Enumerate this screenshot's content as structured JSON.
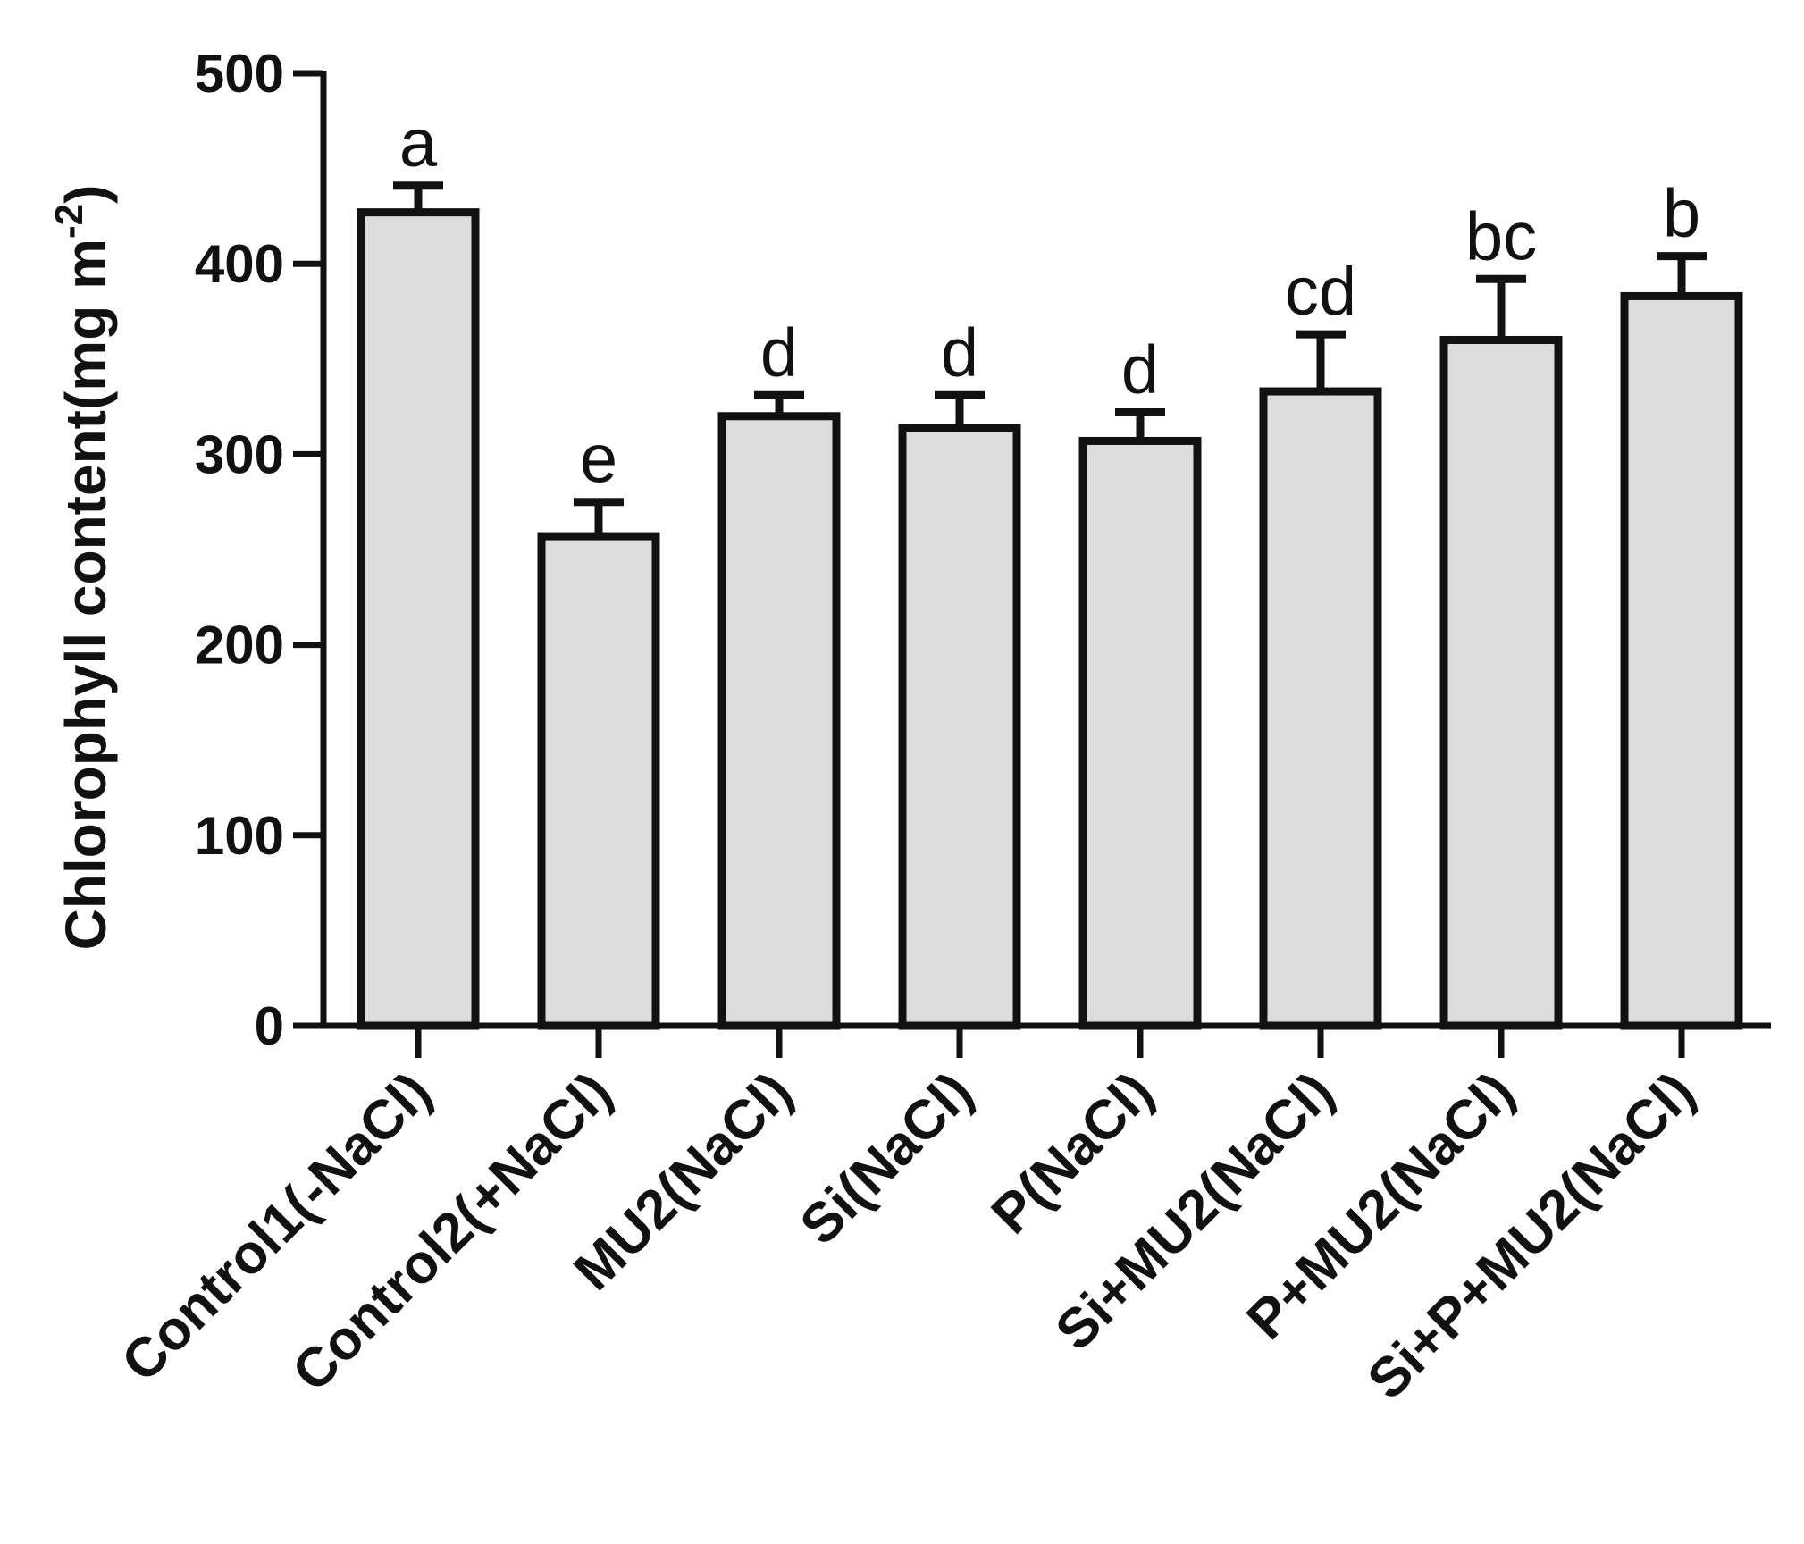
{
  "chart_data": {
    "type": "bar",
    "title": "",
    "xlabel": "",
    "ylabel": "Chlorophyll content(mg m",
    "ylabel_superscript": "-2",
    "ylabel_suffix": ")",
    "ylim": [
      0,
      500
    ],
    "yticks": [
      0,
      100,
      200,
      300,
      400,
      500
    ],
    "grid": false,
    "categories": [
      "Control1(-NaCl)",
      "Control2(+NaCl)",
      "MU2(NaCl)",
      "Si(NaCl)",
      "P(NaCl)",
      "Si+MU2(NaCl)",
      "P+MU2(NaCl)",
      "Si+P+MU2(NaCl)"
    ],
    "values": [
      427,
      257,
      320,
      314,
      307,
      333,
      360,
      383
    ],
    "error": [
      14,
      18,
      11,
      17,
      15,
      30,
      32,
      21
    ],
    "significance_labels": [
      "a",
      "e",
      "d",
      "d",
      "d",
      "cd",
      "bc",
      "b"
    ],
    "colors": {
      "bar_fill": "#dcdcdc",
      "bar_stroke": "#111111",
      "axis": "#111111"
    }
  }
}
